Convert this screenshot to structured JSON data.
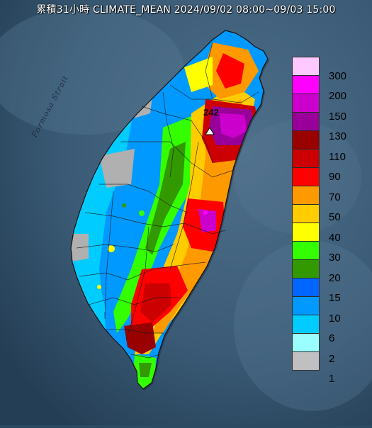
{
  "title": "累積31小時 CLIMATE_MEAN 2024/09/02 08:00~09/03 15:00",
  "map": {
    "strait_label": "Formosa Strait",
    "max_value_label": "242",
    "colors": {
      "ocean": "#2d4a63",
      "ocean_light": "#4a6b86",
      "land_gray": "#b0b0b0"
    }
  },
  "legend": {
    "levels": [
      {
        "label": "300",
        "color": "#ffc8ff"
      },
      {
        "label": "200",
        "color": "#ff00ff"
      },
      {
        "label": "150",
        "color": "#cc00cc"
      },
      {
        "label": "130",
        "color": "#990099"
      },
      {
        "label": "110",
        "color": "#990000"
      },
      {
        "label": "90",
        "color": "#cc0000"
      },
      {
        "label": "70",
        "color": "#ff0000"
      },
      {
        "label": "50",
        "color": "#ff9900"
      },
      {
        "label": "40",
        "color": "#ffcc00"
      },
      {
        "label": "30",
        "color": "#ffff00"
      },
      {
        "label": "20",
        "color": "#33ff00"
      },
      {
        "label": "15",
        "color": "#339900"
      },
      {
        "label": "10",
        "color": "#0066ff"
      },
      {
        "label": "6",
        "color": "#0099ff"
      },
      {
        "label": "2",
        "color": "#00ccff"
      },
      {
        "label": "1",
        "color": "#99ffff"
      },
      {
        "label": "",
        "color": "#c0c0c0"
      }
    ]
  }
}
